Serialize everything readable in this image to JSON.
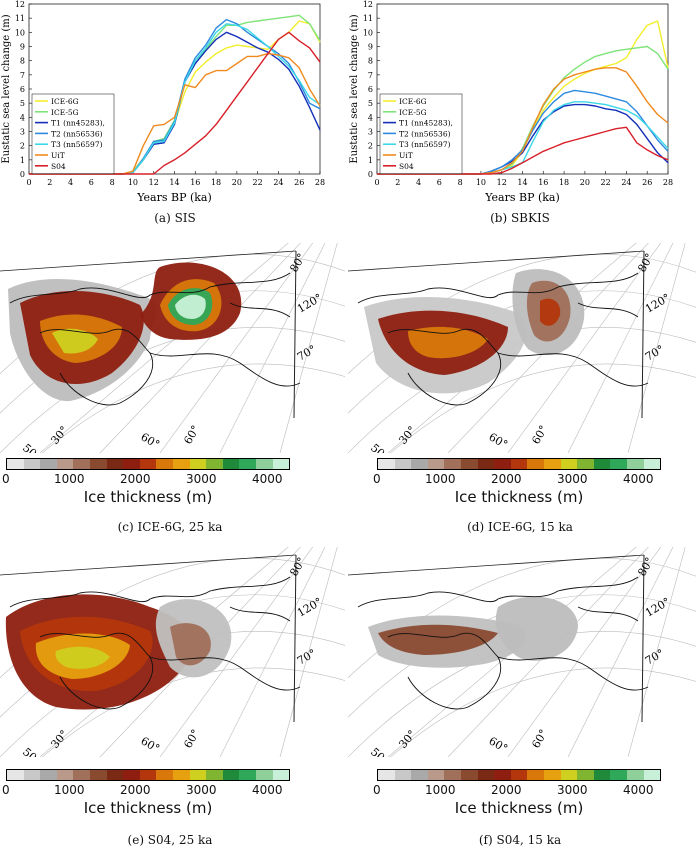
{
  "chart_data": [
    {
      "type": "line",
      "caption": "(a) SIS",
      "xlabel": "Years BP (ka)",
      "ylabel": "Eustatic sea level change (m)",
      "xlim": [
        0,
        28
      ],
      "ylim": [
        0,
        12
      ],
      "x_ticks": [
        0,
        2,
        4,
        6,
        8,
        10,
        12,
        14,
        16,
        18,
        20,
        22,
        24,
        26,
        28
      ],
      "y_ticks": [
        0,
        1,
        2,
        3,
        4,
        5,
        6,
        7,
        8,
        9,
        10,
        11,
        12
      ],
      "legend_position": "lower-left",
      "series": [
        {
          "name": "ICE-6G",
          "color": "#f2ee2e",
          "x": [
            0,
            9,
            10,
            11,
            12,
            13,
            14,
            15,
            16,
            17,
            18,
            19,
            20,
            21,
            22,
            23,
            24,
            25,
            26,
            27,
            28
          ],
          "y": [
            0,
            0,
            0.2,
            1.1,
            2.2,
            2.5,
            3.6,
            5.8,
            7.2,
            7.9,
            8.5,
            8.9,
            9.1,
            9.0,
            8.9,
            8.8,
            9.5,
            10.0,
            10.8,
            10.6,
            9.3
          ]
        },
        {
          "name": "ICE-5G",
          "color": "#7fe37a",
          "x": [
            0,
            9,
            10,
            11,
            12,
            13,
            14,
            15,
            16,
            17,
            18,
            19,
            20,
            21,
            22,
            23,
            24,
            25,
            26,
            27,
            28
          ],
          "y": [
            0,
            0,
            0.1,
            1.0,
            2.3,
            2.5,
            3.8,
            6.6,
            7.8,
            8.8,
            9.7,
            10.5,
            10.5,
            10.7,
            10.8,
            10.9,
            11.0,
            11.1,
            11.2,
            10.6,
            9.4
          ]
        },
        {
          "name": "T1 (nn45283),",
          "color": "#1430b8",
          "x": [
            0,
            9,
            10,
            11,
            12,
            13,
            14,
            15,
            16,
            17,
            18,
            19,
            20,
            21,
            22,
            23,
            24,
            25,
            26,
            27,
            28
          ],
          "y": [
            0,
            0,
            0.1,
            1.0,
            2.1,
            2.2,
            3.5,
            6.5,
            7.8,
            8.7,
            9.5,
            10.0,
            9.7,
            9.3,
            8.9,
            8.6,
            8.1,
            7.4,
            6.2,
            4.7,
            3.1
          ]
        },
        {
          "name": "T2 (nn56536)",
          "color": "#2d8ae0",
          "x": [
            0,
            9,
            10,
            11,
            12,
            13,
            14,
            15,
            16,
            17,
            18,
            19,
            20,
            21,
            22,
            23,
            24,
            25,
            26,
            27,
            28
          ],
          "y": [
            0,
            0,
            0.1,
            1.1,
            2.3,
            2.4,
            3.7,
            6.7,
            8.2,
            9.1,
            10.3,
            10.9,
            10.6,
            10.0,
            9.5,
            9.0,
            8.5,
            7.8,
            6.5,
            5.0,
            4.6
          ]
        },
        {
          "name": "T3 (nn56597)",
          "color": "#3cd8e8",
          "x": [
            0,
            9,
            10,
            11,
            12,
            13,
            14,
            15,
            16,
            17,
            18,
            19,
            20,
            21,
            22,
            23,
            24,
            25,
            26,
            27,
            28
          ],
          "y": [
            0,
            0,
            0.1,
            1.0,
            2.2,
            2.3,
            3.6,
            6.5,
            8.0,
            8.9,
            10.0,
            10.6,
            10.5,
            10.2,
            9.6,
            9.0,
            8.3,
            7.6,
            6.6,
            5.4,
            4.9
          ]
        },
        {
          "name": "UiT",
          "color": "#f08a1e",
          "x": [
            0,
            9,
            10,
            11,
            12,
            13,
            14,
            15,
            16,
            17,
            18,
            19,
            20,
            21,
            22,
            23,
            24,
            25,
            26,
            27,
            28
          ],
          "y": [
            0,
            0,
            0.2,
            2.0,
            3.4,
            3.5,
            4.0,
            6.3,
            6.1,
            7.0,
            7.3,
            7.3,
            7.8,
            8.3,
            8.3,
            8.5,
            8.4,
            8.2,
            7.5,
            6.0,
            4.8
          ]
        },
        {
          "name": "S04",
          "color": "#d8202a",
          "x": [
            0,
            12,
            13,
            14,
            15,
            16,
            17,
            18,
            19,
            20,
            21,
            22,
            23,
            24,
            25,
            26,
            27,
            28
          ],
          "y": [
            0,
            0,
            0.6,
            1.0,
            1.5,
            2.1,
            2.7,
            3.5,
            4.5,
            5.5,
            6.5,
            7.5,
            8.5,
            9.5,
            10.0,
            9.4,
            8.9,
            7.9
          ]
        }
      ]
    },
    {
      "type": "line",
      "caption": "(b) SBKIS",
      "xlabel": "Years BP (ka)",
      "ylabel": "Eustatic sea level change (m)",
      "xlim": [
        0,
        28
      ],
      "ylim": [
        0,
        12
      ],
      "x_ticks": [
        0,
        2,
        4,
        6,
        8,
        10,
        12,
        14,
        16,
        18,
        20,
        22,
        24,
        26,
        28
      ],
      "y_ticks": [
        0,
        1,
        2,
        3,
        4,
        5,
        6,
        7,
        8,
        9,
        10,
        11,
        12
      ],
      "legend_position": "lower-left",
      "series": [
        {
          "name": "ICE-6G",
          "color": "#f2ee2e",
          "x": [
            0,
            10,
            11,
            12,
            13,
            14,
            15,
            16,
            17,
            18,
            19,
            20,
            21,
            22,
            23,
            24,
            25,
            26,
            27,
            28
          ],
          "y": [
            0,
            0,
            0.1,
            0.3,
            0.6,
            1.6,
            3.2,
            4.5,
            5.4,
            6.2,
            6.7,
            7.1,
            7.4,
            7.6,
            7.8,
            8.2,
            9.5,
            10.5,
            10.8,
            7.5
          ]
        },
        {
          "name": "ICE-5G",
          "color": "#7fe37a",
          "x": [
            0,
            10,
            11,
            12,
            13,
            14,
            15,
            16,
            17,
            18,
            19,
            20,
            21,
            22,
            23,
            24,
            25,
            26,
            27,
            28
          ],
          "y": [
            0,
            0,
            0.1,
            0.3,
            0.7,
            1.8,
            3.4,
            4.8,
            5.9,
            6.8,
            7.4,
            7.9,
            8.3,
            8.5,
            8.7,
            8.8,
            8.9,
            9.0,
            8.5,
            7.4
          ]
        },
        {
          "name": "T1 (nn45283),",
          "color": "#1430b8",
          "x": [
            0,
            10,
            11,
            12,
            13,
            14,
            15,
            16,
            17,
            18,
            19,
            20,
            21,
            22,
            23,
            24,
            25,
            26,
            27,
            28
          ],
          "y": [
            0,
            0,
            0.2,
            0.5,
            0.9,
            1.5,
            2.7,
            3.8,
            4.4,
            4.8,
            4.9,
            4.9,
            4.8,
            4.6,
            4.5,
            4.2,
            3.5,
            2.5,
            1.5,
            0.8
          ]
        },
        {
          "name": "T2 (nn56536)",
          "color": "#2d8ae0",
          "x": [
            0,
            10,
            11,
            12,
            13,
            14,
            15,
            16,
            17,
            18,
            19,
            20,
            21,
            22,
            23,
            24,
            25,
            26,
            27,
            28
          ],
          "y": [
            0,
            0,
            0.2,
            0.5,
            1.0,
            1.7,
            3.1,
            4.3,
            5.1,
            5.7,
            5.9,
            5.8,
            5.7,
            5.5,
            5.3,
            5.1,
            4.4,
            3.4,
            2.4,
            1.6
          ]
        },
        {
          "name": "T3 (nn56597)",
          "color": "#3cd8e8",
          "x": [
            0,
            10,
            11,
            12,
            13,
            14,
            15,
            16,
            17,
            18,
            19,
            20,
            21,
            22,
            23,
            24,
            25,
            26,
            27,
            28
          ],
          "y": [
            0,
            0,
            0.1,
            0.3,
            0.5,
            0.8,
            2.3,
            3.7,
            4.5,
            4.9,
            5.1,
            5.1,
            5.0,
            4.9,
            4.7,
            4.5,
            4.1,
            3.4,
            2.6,
            1.8
          ]
        },
        {
          "name": "UiT",
          "color": "#f08a1e",
          "x": [
            0,
            10,
            11,
            12,
            13,
            14,
            15,
            16,
            17,
            18,
            19,
            20,
            21,
            22,
            23,
            24,
            25,
            26,
            27,
            28
          ],
          "y": [
            0,
            0,
            0.1,
            0.3,
            0.8,
            1.6,
            3.3,
            4.9,
            6.0,
            6.7,
            7.0,
            7.2,
            7.4,
            7.5,
            7.5,
            7.2,
            6.2,
            5.1,
            4.2,
            3.6
          ]
        },
        {
          "name": "S04",
          "color": "#d8202a",
          "x": [
            0,
            11,
            12,
            13,
            14,
            15,
            16,
            17,
            18,
            19,
            20,
            21,
            22,
            23,
            24,
            25,
            26,
            27,
            28
          ],
          "y": [
            0,
            0,
            0.1,
            0.4,
            0.8,
            1.2,
            1.6,
            1.9,
            2.2,
            2.4,
            2.6,
            2.8,
            3.0,
            3.2,
            3.3,
            2.2,
            1.7,
            1.3,
            1.0
          ]
        }
      ]
    },
    {
      "type": "heatmap",
      "caption": "(c) ICE-6G, 25 ka",
      "colorbar_label": "Ice thickness (m)",
      "colorbar_ticks": [
        "0",
        "1000",
        "2000",
        "3000",
        "4000"
      ],
      "lat_labels": [
        "80°",
        "70°"
      ],
      "lon_labels": [
        "50°",
        "30°",
        "60°",
        "60°",
        "120°"
      ]
    },
    {
      "type": "heatmap",
      "caption": "(d) ICE-6G, 15 ka",
      "colorbar_label": "Ice thickness (m)",
      "colorbar_ticks": [
        "0",
        "1000",
        "2000",
        "3000",
        "4000"
      ],
      "lat_labels": [
        "80°",
        "70°"
      ],
      "lon_labels": [
        "50°",
        "30°",
        "60°",
        "60°",
        "120°"
      ]
    },
    {
      "type": "heatmap",
      "caption": "(e) S04, 25 ka",
      "colorbar_label": "Ice thickness (m)",
      "colorbar_ticks": [
        "0",
        "1000",
        "2000",
        "3000",
        "4000"
      ],
      "lat_labels": [
        "80°",
        "70°"
      ],
      "lon_labels": [
        "50°",
        "30°",
        "60°",
        "60°",
        "120°"
      ]
    },
    {
      "type": "heatmap",
      "caption": "(f) S04, 15 ka",
      "colorbar_label": "Ice thickness (m)",
      "colorbar_ticks": [
        "0",
        "1000",
        "2000",
        "3000",
        "4000"
      ],
      "lat_labels": [
        "80°",
        "70°"
      ],
      "lon_labels": [
        "50°",
        "30°",
        "60°",
        "60°",
        "120°"
      ]
    }
  ],
  "colorbar_colors": [
    "#e6e6e6",
    "#c8c8c8",
    "#a9a9a9",
    "#b9998a",
    "#a0705a",
    "#8a4a30",
    "#7a2a14",
    "#8e1f10",
    "#b4360c",
    "#d8780a",
    "#e6a010",
    "#cfcf20",
    "#7fb530",
    "#1e8a3a",
    "#2fa85a",
    "#8fd09a",
    "#c8f0d8"
  ]
}
